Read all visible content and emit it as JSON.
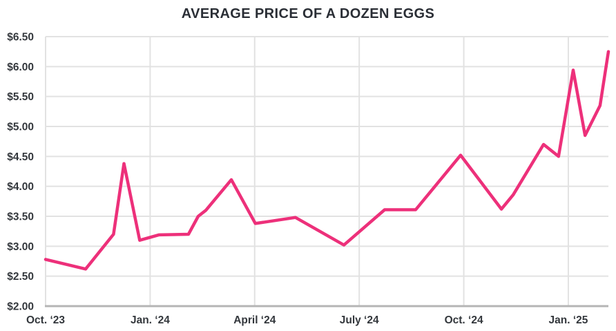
{
  "title": "AVERAGE PRICE OF A DOZEN EGGS",
  "colors": {
    "line": "#ED307A",
    "title_text": "#2A2E35",
    "tick_text": "#33373C",
    "gridline": "#E2E2E2",
    "axis_line": "#B5B5B5",
    "background": "#FFFFFF"
  },
  "chart_data": {
    "type": "line",
    "title": "AVERAGE PRICE OF A DOZEN EGGS",
    "x_unit": "months since Oct 2023",
    "x_range": [
      0,
      16.15
    ],
    "y_range": [
      2.0,
      6.5
    ],
    "grid": true,
    "legend_position": "none",
    "y_ticks": [
      {
        "v": 2.0,
        "label": "$2.00"
      },
      {
        "v": 2.5,
        "label": "$2.50"
      },
      {
        "v": 3.0,
        "label": "$3.00"
      },
      {
        "v": 3.5,
        "label": "$3.50"
      },
      {
        "v": 4.0,
        "label": "$4.00"
      },
      {
        "v": 4.5,
        "label": "$4.50"
      },
      {
        "v": 5.0,
        "label": "$5.00"
      },
      {
        "v": 5.5,
        "label": "$5.50"
      },
      {
        "v": 6.0,
        "label": "$6.00"
      },
      {
        "v": 6.5,
        "label": "$6.50"
      }
    ],
    "x_ticks": [
      {
        "m": 0,
        "label": "Oct. ‘23"
      },
      {
        "m": 3,
        "label": "Jan. ‘24"
      },
      {
        "m": 6,
        "label": "April ‘24"
      },
      {
        "m": 9,
        "label": "July ‘24"
      },
      {
        "m": 12,
        "label": "Oct. ‘24"
      },
      {
        "m": 15,
        "label": "Jan. ‘25"
      }
    ],
    "series": [
      {
        "points": [
          [
            0.0,
            2.78
          ],
          [
            1.15,
            2.62
          ],
          [
            1.95,
            3.2
          ],
          [
            2.25,
            4.38
          ],
          [
            2.7,
            3.1
          ],
          [
            3.25,
            3.19
          ],
          [
            4.1,
            3.2
          ],
          [
            4.38,
            3.5
          ],
          [
            4.6,
            3.6
          ],
          [
            5.33,
            4.11
          ],
          [
            6.02,
            3.38
          ],
          [
            7.17,
            3.48
          ],
          [
            8.56,
            3.02
          ],
          [
            9.73,
            3.61
          ],
          [
            10.62,
            3.61
          ],
          [
            11.91,
            4.52
          ],
          [
            13.08,
            3.62
          ],
          [
            13.42,
            3.86
          ],
          [
            14.29,
            4.7
          ],
          [
            14.72,
            4.5
          ],
          [
            15.14,
            5.94
          ],
          [
            15.48,
            4.85
          ],
          [
            15.91,
            5.35
          ],
          [
            16.15,
            6.25
          ]
        ]
      }
    ]
  }
}
